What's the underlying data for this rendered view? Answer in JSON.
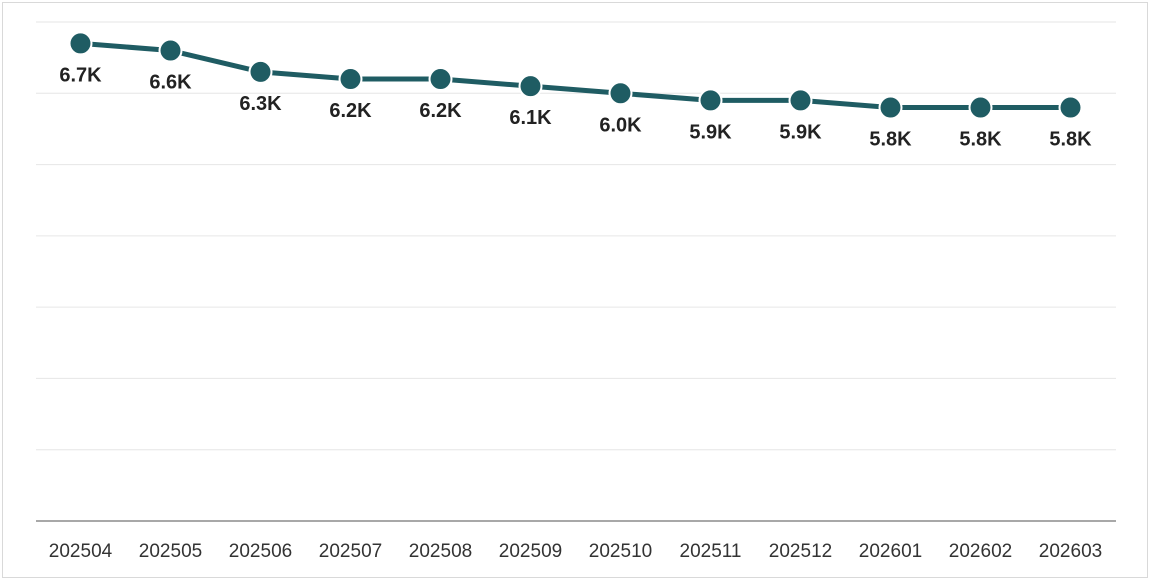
{
  "chart_data": {
    "type": "line",
    "title": "",
    "xlabel": "",
    "ylabel": "",
    "categories": [
      "202504",
      "202505",
      "202506",
      "202507",
      "202508",
      "202509",
      "202510",
      "202511",
      "202512",
      "202601",
      "202602",
      "202603"
    ],
    "series": [
      {
        "values": [
          6700,
          6600,
          6300,
          6200,
          6200,
          6100,
          6000,
          5900,
          5900,
          5800,
          5800,
          5800
        ],
        "labels": [
          "6.7K",
          "6.6K",
          "6.3K",
          "6.2K",
          "6.2K",
          "6.1K",
          "6.0K",
          "5.9K",
          "5.9K",
          "5.8K",
          "5.8K",
          "5.8K"
        ]
      }
    ],
    "ylim": [
      0,
      7000
    ],
    "grid": true,
    "y_axis_labels_shown": false,
    "colors": {
      "line": "#1f5c63",
      "marker": "#1f5c63",
      "marker_stroke": "#ffffff",
      "grid": "#e6e6e6",
      "axis": "#8c8c8c"
    }
  }
}
